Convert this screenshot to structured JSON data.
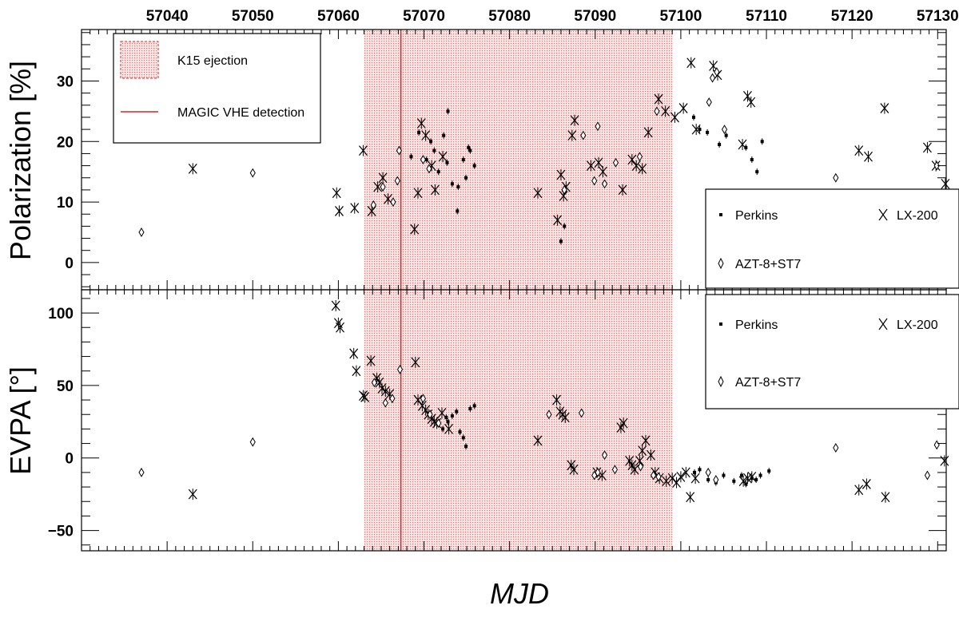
{
  "chart_data": {
    "type": "scatter",
    "xlabel": "MJD",
    "xlim": [
      57030,
      57131
    ],
    "xticks": [
      "57040",
      "57050",
      "57060",
      "57070",
      "57080",
      "57090",
      "57100",
      "57110",
      "57120",
      "57130"
    ],
    "xtick_values": [
      57040,
      57050,
      57060,
      57070,
      57080,
      57090,
      57100,
      57110,
      57120,
      57130
    ],
    "shaded_region": {
      "label": "K15 ejection",
      "x": [
        57063,
        57099
      ],
      "color": "#e87070"
    },
    "vertical_line": {
      "label": "MAGIC VHE detection",
      "x": 57067.3,
      "color": "#e02020"
    },
    "panels": [
      {
        "ylabel": "Polarization [%]",
        "ylim": [
          -4.5,
          38.5
        ],
        "yticks": [
          "0",
          "10",
          "20",
          "30"
        ],
        "ytick_values": [
          0,
          10,
          20,
          30
        ],
        "legend": {
          "entries": [
            "Perkins",
            "LX-200",
            "AZT-8+ST7"
          ]
        },
        "series": [
          {
            "name": "Perkins",
            "marker": "square",
            "x": [
              57068.5,
              57069.4,
              57070.3,
              57070.8,
              57071.2,
              57071.7,
              57072.3,
              57072.8,
              57073.3,
              57073.9,
              57074.6,
              57074.9,
              57075.4,
              57075.9,
              57086.0,
              57086.4,
              57101.5,
              57102.2,
              57103.1,
              57104.5,
              57105.3,
              57107.6,
              57108.3,
              57108.9,
              57109.5,
              57072.7,
              57074.0,
              57075.2
            ],
            "y": [
              17.5,
              21.5,
              17.0,
              20.0,
              18.5,
              15.0,
              21.0,
              25.0,
              13.0,
              8.5,
              17.0,
              14.0,
              18.5,
              16.0,
              3.5,
              6.0,
              24.0,
              22.0,
              21.5,
              19.5,
              21.0,
              19.0,
              17.0,
              15.0,
              20.0,
              16.5,
              12.5,
              19.0
            ]
          },
          {
            "name": "LX-200",
            "marker": "cross",
            "x": [
              57043.0,
              57059.8,
              57060.1,
              57061.9,
              57062.9,
              57063.9,
              57064.6,
              57065.2,
              57065.8,
              57068.9,
              57069.3,
              57069.7,
              57070.2,
              57070.9,
              57071.3,
              57072.2,
              57083.3,
              57085.6,
              57086.0,
              57086.3,
              57086.6,
              57087.3,
              57087.6,
              57089.5,
              57090.4,
              57090.9,
              57093.2,
              57094.3,
              57094.8,
              57095.5,
              57096.2,
              57097.4,
              57098.2,
              57099.3,
              57100.3,
              57101.2,
              57101.8,
              57103.8,
              57104.3,
              57107.2,
              57107.8,
              57108.2,
              57120.8,
              57121.9,
              57123.8,
              57128.8,
              57129.8,
              57130.9
            ],
            "y": [
              15.5,
              11.5,
              8.5,
              9.0,
              18.5,
              8.5,
              12.5,
              14.0,
              10.5,
              5.5,
              11.5,
              23.0,
              21.0,
              16.0,
              12.0,
              17.5,
              11.5,
              7.0,
              14.5,
              11.0,
              12.5,
              21.0,
              23.5,
              16.0,
              16.5,
              15.0,
              12.0,
              17.0,
              16.0,
              15.5,
              21.5,
              27.0,
              25.0,
              24.0,
              25.5,
              33.0,
              22.0,
              32.5,
              31.0,
              19.5,
              27.5,
              26.5,
              18.5,
              17.5,
              25.5,
              19.0,
              16.0,
              13.0
            ]
          },
          {
            "name": "AZT-8+ST7",
            "marker": "diamond",
            "x": [
              57037.0,
              57050.0,
              57064.1,
              57065.2,
              57066.4,
              57066.9,
              57067.1,
              57069.9,
              57070.6,
              57086.4,
              57088.6,
              57089.9,
              57090.3,
              57091.1,
              57092.4,
              57095.2,
              57097.2,
              57103.3,
              57103.7,
              57104.2,
              57105.1,
              57118.1,
              57129.9
            ],
            "y": [
              5.0,
              14.8,
              9.5,
              12.5,
              10.0,
              13.5,
              18.5,
              17.0,
              15.5,
              12.0,
              21.0,
              13.5,
              22.5,
              13.0,
              16.5,
              17.5,
              25.0,
              26.5,
              30.5,
              31.5,
              22.0,
              14.0,
              16.0
            ]
          }
        ]
      },
      {
        "ylabel": "EVPA [°]",
        "ylim": [
          -64,
          116
        ],
        "yticks": [
          "−50",
          "0",
          "50",
          "100"
        ],
        "ytick_values": [
          -50,
          0,
          50,
          100
        ],
        "legend": {
          "entries": [
            "Perkins",
            "LX-200",
            "AZT-8+ST7"
          ]
        },
        "series": [
          {
            "name": "Perkins",
            "marker": "square",
            "x": [
              57072.2,
              57072.8,
              57073.3,
              57073.8,
              57074.6,
              57074.9,
              57075.4,
              57075.9,
              57101.6,
              57102.2,
              57103.2,
              57104.1,
              57105.0,
              57106.2,
              57107.1,
              57107.6,
              57108.3,
              57108.8,
              57109.3,
              57110.3,
              57072.6,
              57074.2
            ],
            "y": [
              20.0,
              25.0,
              29.0,
              32.0,
              14.0,
              8.0,
              34.0,
              36.0,
              -10.0,
              -8.0,
              -15.0,
              -17.0,
              -12.0,
              -16.0,
              -12.0,
              -18.0,
              -14.0,
              -15.0,
              -12.0,
              -9.0,
              28.0,
              18.0
            ]
          },
          {
            "name": "LX-200",
            "marker": "cross",
            "x": [
              57043.0,
              57059.7,
              57060.0,
              57060.2,
              57061.8,
              57062.1,
              57062.9,
              57063.1,
              57063.8,
              57064.5,
              57064.8,
              57065.1,
              57065.5,
              57066.0,
              57069.0,
              57069.3,
              57069.8,
              57070.2,
              57070.5,
              57070.9,
              57071.2,
              57071.5,
              57072.1,
              57072.9,
              57083.3,
              57085.5,
              57085.9,
              57086.2,
              57086.5,
              57087.2,
              57087.5,
              57090.2,
              57090.8,
              57093.0,
              57093.3,
              57094.0,
              57094.3,
              57094.6,
              57095.2,
              57095.5,
              57095.9,
              57096.5,
              57097.0,
              57097.5,
              57098.3,
              57099.0,
              57099.5,
              57100.0,
              57100.6,
              57101.1,
              57101.7,
              57107.3,
              57107.8,
              57108.3,
              57120.8,
              57121.7,
              57123.9,
              57130.8
            ],
            "y": [
              -25.0,
              105.0,
              93.0,
              90.0,
              72.0,
              60.0,
              43.0,
              42.0,
              67.0,
              55.0,
              52.0,
              48.0,
              46.0,
              44.0,
              66.0,
              40.0,
              36.0,
              33.0,
              30.0,
              27.0,
              25.0,
              24.0,
              31.0,
              20.0,
              12.0,
              40.0,
              32.0,
              30.0,
              28.0,
              -5.0,
              -8.0,
              -10.0,
              -12.0,
              21.0,
              24.0,
              -2.0,
              -5.0,
              -8.0,
              -2.0,
              5.0,
              12.0,
              2.0,
              -10.0,
              -14.0,
              -16.0,
              -14.0,
              -17.0,
              -13.0,
              -10.0,
              -27.0,
              -14.0,
              -16.0,
              -14.0,
              -13.0,
              -22.0,
              -18.0,
              -27.0,
              -2.0
            ]
          },
          {
            "name": "AZT-8+ST7",
            "marker": "diamond",
            "x": [
              57037.0,
              57050.0,
              57064.2,
              57065.5,
              57066.3,
              57067.2,
              57069.9,
              57070.7,
              57071.7,
              57084.6,
              57088.4,
              57089.9,
              57090.3,
              57091.1,
              57092.3,
              57095.3,
              57096.8,
              57097.4,
              57103.2,
              57104.1,
              57118.1,
              57128.8,
              57129.9
            ],
            "y": [
              -10.0,
              11.0,
              52.0,
              38.0,
              41.0,
              61.0,
              41.0,
              30.0,
              24.0,
              30.0,
              31.0,
              -12.0,
              -10.0,
              2.0,
              -8.0,
              -6.0,
              -12.0,
              -13.0,
              -10.0,
              -15.0,
              7.0,
              -12.0,
              9.0
            ]
          }
        ]
      }
    ]
  }
}
